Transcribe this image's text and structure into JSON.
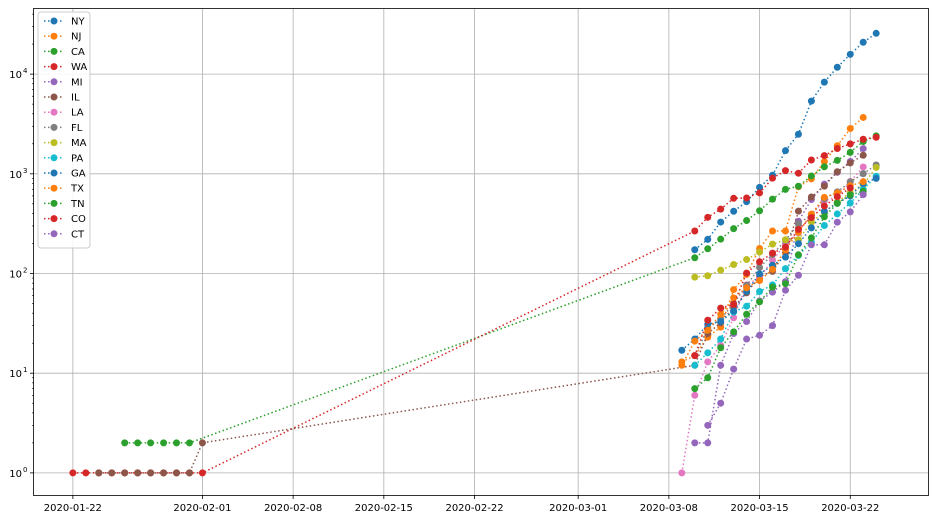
{
  "chart_data": {
    "type": "line",
    "style": "dotted lines with circle markers",
    "yscale": "log",
    "grid": true,
    "legend_position": "top-left",
    "xlim": [
      "2020-01-19",
      "2020-03-28"
    ],
    "ylim": [
      0.6,
      45000
    ],
    "x_ticks": [
      "2020-01-22",
      "2020-02-01",
      "2020-02-08",
      "2020-02-15",
      "2020-02-22",
      "2020-03-01",
      "2020-03-08",
      "2020-03-15",
      "2020-03-22"
    ],
    "y_ticks": [
      {
        "value": 1,
        "base": "10",
        "exp": "0"
      },
      {
        "value": 10,
        "base": "10",
        "exp": "1"
      },
      {
        "value": 100,
        "base": "10",
        "exp": "2"
      },
      {
        "value": 1000,
        "base": "10",
        "exp": "3"
      },
      {
        "value": 10000,
        "base": "10",
        "exp": "4"
      }
    ],
    "series": [
      {
        "name": "NY",
        "color": "#1f77b4",
        "points": [
          [
            "2020-03-10",
            173
          ],
          [
            "2020-03-11",
            220
          ],
          [
            "2020-03-12",
            328
          ],
          [
            "2020-03-13",
            421
          ],
          [
            "2020-03-14",
            525
          ],
          [
            "2020-03-15",
            732
          ],
          [
            "2020-03-16",
            967
          ],
          [
            "2020-03-17",
            1706
          ],
          [
            "2020-03-18",
            2495
          ],
          [
            "2020-03-19",
            5365
          ],
          [
            "2020-03-20",
            8310
          ],
          [
            "2020-03-21",
            11710
          ],
          [
            "2020-03-22",
            15793
          ],
          [
            "2020-03-23",
            20875
          ],
          [
            "2020-03-24",
            25665
          ]
        ]
      },
      {
        "name": "NJ",
        "color": "#ff7f0e",
        "points": [
          [
            "2020-03-09",
            13
          ],
          [
            "2020-03-10",
            15
          ],
          [
            "2020-03-11",
            23
          ],
          [
            "2020-03-12",
            29
          ],
          [
            "2020-03-13",
            69
          ],
          [
            "2020-03-14",
            98
          ],
          [
            "2020-03-15",
            178
          ],
          [
            "2020-03-16",
            267
          ],
          [
            "2020-03-17",
            267
          ],
          [
            "2020-03-18",
            742
          ],
          [
            "2020-03-19",
            890
          ],
          [
            "2020-03-20",
            1327
          ],
          [
            "2020-03-21",
            1914
          ],
          [
            "2020-03-22",
            2844
          ],
          [
            "2020-03-23",
            3675
          ]
        ]
      },
      {
        "name": "CA",
        "color": "#2ca02c",
        "points": [
          [
            "2020-01-26",
            2
          ],
          [
            "2020-01-27",
            2
          ],
          [
            "2020-01-28",
            2
          ],
          [
            "2020-01-29",
            2
          ],
          [
            "2020-01-30",
            2
          ],
          [
            "2020-01-31",
            2
          ],
          [
            "2020-03-10",
            144
          ],
          [
            "2020-03-11",
            177
          ],
          [
            "2020-03-12",
            221
          ],
          [
            "2020-03-13",
            282
          ],
          [
            "2020-03-14",
            340
          ],
          [
            "2020-03-15",
            426
          ],
          [
            "2020-03-16",
            557
          ],
          [
            "2020-03-17",
            698
          ],
          [
            "2020-03-18",
            751
          ],
          [
            "2020-03-19",
            952
          ],
          [
            "2020-03-20",
            1177
          ],
          [
            "2020-03-21",
            1364
          ],
          [
            "2020-03-22",
            1642
          ],
          [
            "2020-03-23",
            2108
          ],
          [
            "2020-03-24",
            2400
          ]
        ]
      },
      {
        "name": "WA",
        "color": "#d62728",
        "points": [
          [
            "2020-01-22",
            1
          ],
          [
            "2020-01-23",
            1
          ],
          [
            "2020-01-24",
            1
          ],
          [
            "2020-01-25",
            1
          ],
          [
            "2020-01-26",
            1
          ],
          [
            "2020-01-27",
            1
          ],
          [
            "2020-01-28",
            1
          ],
          [
            "2020-01-29",
            1
          ],
          [
            "2020-01-30",
            1
          ],
          [
            "2020-01-31",
            1
          ],
          [
            "2020-02-01",
            1
          ],
          [
            "2020-03-10",
            267
          ],
          [
            "2020-03-11",
            366
          ],
          [
            "2020-03-12",
            442
          ],
          [
            "2020-03-13",
            568
          ],
          [
            "2020-03-14",
            572
          ],
          [
            "2020-03-15",
            643
          ],
          [
            "2020-03-16",
            904
          ],
          [
            "2020-03-17",
            1076
          ],
          [
            "2020-03-18",
            1014
          ],
          [
            "2020-03-19",
            1376
          ],
          [
            "2020-03-20",
            1524
          ],
          [
            "2020-03-21",
            1793
          ],
          [
            "2020-03-22",
            1996
          ],
          [
            "2020-03-23",
            2221
          ],
          [
            "2020-03-24",
            2328
          ]
        ]
      },
      {
        "name": "MI",
        "color": "#9467bd",
        "points": [
          [
            "2020-03-10",
            2
          ],
          [
            "2020-03-11",
            2
          ],
          [
            "2020-03-12",
            12
          ],
          [
            "2020-03-13",
            25
          ],
          [
            "2020-03-14",
            33
          ],
          [
            "2020-03-15",
            53
          ],
          [
            "2020-03-16",
            65
          ],
          [
            "2020-03-17",
            83
          ],
          [
            "2020-03-18",
            334
          ],
          [
            "2020-03-19",
            552
          ],
          [
            "2020-03-20",
            787
          ],
          [
            "2020-03-21",
            1035
          ],
          [
            "2020-03-22",
            1328
          ],
          [
            "2020-03-23",
            1791
          ]
        ]
      },
      {
        "name": "IL",
        "color": "#8c564b",
        "points": [
          [
            "2020-01-24",
            1
          ],
          [
            "2020-01-25",
            1
          ],
          [
            "2020-01-26",
            1
          ],
          [
            "2020-01-27",
            1
          ],
          [
            "2020-01-28",
            1
          ],
          [
            "2020-01-29",
            1
          ],
          [
            "2020-01-30",
            1
          ],
          [
            "2020-01-31",
            1
          ],
          [
            "2020-02-01",
            2
          ],
          [
            "2020-03-10",
            12
          ],
          [
            "2020-03-11",
            25
          ],
          [
            "2020-03-12",
            32
          ],
          [
            "2020-03-13",
            46
          ],
          [
            "2020-03-14",
            64
          ],
          [
            "2020-03-15",
            93
          ],
          [
            "2020-03-16",
            105
          ],
          [
            "2020-03-17",
            161
          ],
          [
            "2020-03-18",
            422
          ],
          [
            "2020-03-19",
            585
          ],
          [
            "2020-03-20",
            753
          ],
          [
            "2020-03-21",
            1049
          ],
          [
            "2020-03-22",
            1285
          ],
          [
            "2020-03-23",
            1535
          ]
        ]
      },
      {
        "name": "LA",
        "color": "#e377c2",
        "points": [
          [
            "2020-03-09",
            1
          ],
          [
            "2020-03-10",
            6
          ],
          [
            "2020-03-11",
            13
          ],
          [
            "2020-03-12",
            19
          ],
          [
            "2020-03-13",
            36
          ],
          [
            "2020-03-14",
            77
          ],
          [
            "2020-03-15",
            91
          ],
          [
            "2020-03-16",
            136
          ],
          [
            "2020-03-17",
            196
          ],
          [
            "2020-03-18",
            257
          ],
          [
            "2020-03-19",
            392
          ],
          [
            "2020-03-20",
            538
          ],
          [
            "2020-03-21",
            585
          ],
          [
            "2020-03-22",
            837
          ],
          [
            "2020-03-23",
            1172
          ]
        ]
      },
      {
        "name": "FL",
        "color": "#7f7f7f",
        "points": [
          [
            "2020-03-10",
            15
          ],
          [
            "2020-03-11",
            28
          ],
          [
            "2020-03-12",
            35
          ],
          [
            "2020-03-13",
            50
          ],
          [
            "2020-03-14",
            76
          ],
          [
            "2020-03-15",
            115
          ],
          [
            "2020-03-16",
            155
          ],
          [
            "2020-03-17",
            216
          ],
          [
            "2020-03-18",
            314
          ],
          [
            "2020-03-19",
            390
          ],
          [
            "2020-03-20",
            563
          ],
          [
            "2020-03-21",
            659
          ],
          [
            "2020-03-22",
            830
          ],
          [
            "2020-03-23",
            1004
          ],
          [
            "2020-03-24",
            1227
          ]
        ]
      },
      {
        "name": "MA",
        "color": "#bcbd22",
        "points": [
          [
            "2020-03-10",
            92
          ],
          [
            "2020-03-11",
            95
          ],
          [
            "2020-03-12",
            108
          ],
          [
            "2020-03-13",
            123
          ],
          [
            "2020-03-14",
            138
          ],
          [
            "2020-03-15",
            164
          ],
          [
            "2020-03-16",
            197
          ],
          [
            "2020-03-17",
            218
          ],
          [
            "2020-03-18",
            218
          ],
          [
            "2020-03-19",
            328
          ],
          [
            "2020-03-20",
            413
          ],
          [
            "2020-03-21",
            525
          ],
          [
            "2020-03-22",
            646
          ],
          [
            "2020-03-23",
            777
          ],
          [
            "2020-03-24",
            1159
          ]
        ]
      },
      {
        "name": "PA",
        "color": "#17becf",
        "points": [
          [
            "2020-03-10",
            12
          ],
          [
            "2020-03-11",
            16
          ],
          [
            "2020-03-12",
            22
          ],
          [
            "2020-03-13",
            41
          ],
          [
            "2020-03-14",
            47
          ],
          [
            "2020-03-15",
            66
          ],
          [
            "2020-03-16",
            77
          ],
          [
            "2020-03-17",
            112
          ],
          [
            "2020-03-18",
            152
          ],
          [
            "2020-03-19",
            206
          ],
          [
            "2020-03-20",
            303
          ],
          [
            "2020-03-21",
            396
          ],
          [
            "2020-03-22",
            509
          ],
          [
            "2020-03-23",
            698
          ],
          [
            "2020-03-24",
            946
          ]
        ]
      },
      {
        "name": "GA",
        "color": "#1f77b4",
        "points": [
          [
            "2020-03-09",
            17
          ],
          [
            "2020-03-10",
            22
          ],
          [
            "2020-03-11",
            31
          ],
          [
            "2020-03-12",
            33
          ],
          [
            "2020-03-13",
            42
          ],
          [
            "2020-03-14",
            66
          ],
          [
            "2020-03-15",
            99
          ],
          [
            "2020-03-16",
            121
          ],
          [
            "2020-03-17",
            146
          ],
          [
            "2020-03-18",
            199
          ],
          [
            "2020-03-19",
            287
          ],
          [
            "2020-03-20",
            420
          ],
          [
            "2020-03-21",
            507
          ],
          [
            "2020-03-22",
            600
          ],
          [
            "2020-03-23",
            800
          ],
          [
            "2020-03-24",
            900
          ]
        ]
      },
      {
        "name": "TX",
        "color": "#ff7f0e",
        "points": [
          [
            "2020-03-09",
            12
          ],
          [
            "2020-03-10",
            21
          ],
          [
            "2020-03-11",
            27
          ],
          [
            "2020-03-12",
            39
          ],
          [
            "2020-03-13",
            57
          ],
          [
            "2020-03-14",
            72
          ],
          [
            "2020-03-15",
            85
          ],
          [
            "2020-03-16",
            110
          ],
          [
            "2020-03-17",
            173
          ],
          [
            "2020-03-18",
            260
          ],
          [
            "2020-03-19",
            394
          ],
          [
            "2020-03-20",
            581
          ],
          [
            "2020-03-21",
            643
          ],
          [
            "2020-03-22",
            758
          ],
          [
            "2020-03-23",
            834
          ]
        ]
      },
      {
        "name": "TN",
        "color": "#2ca02c",
        "points": [
          [
            "2020-03-10",
            7
          ],
          [
            "2020-03-11",
            9
          ],
          [
            "2020-03-12",
            18
          ],
          [
            "2020-03-13",
            26
          ],
          [
            "2020-03-14",
            39
          ],
          [
            "2020-03-15",
            52
          ],
          [
            "2020-03-16",
            73
          ],
          [
            "2020-03-17",
            79
          ],
          [
            "2020-03-18",
            154
          ],
          [
            "2020-03-19",
            228
          ],
          [
            "2020-03-20",
            371
          ],
          [
            "2020-03-21",
            505
          ],
          [
            "2020-03-22",
            615
          ],
          [
            "2020-03-23",
            667
          ]
        ]
      },
      {
        "name": "CO",
        "color": "#d62728",
        "points": [
          [
            "2020-03-10",
            15
          ],
          [
            "2020-03-11",
            34
          ],
          [
            "2020-03-12",
            45
          ],
          [
            "2020-03-13",
            49
          ],
          [
            "2020-03-14",
            101
          ],
          [
            "2020-03-15",
            131
          ],
          [
            "2020-03-16",
            160
          ],
          [
            "2020-03-17",
            184
          ],
          [
            "2020-03-18",
            277
          ],
          [
            "2020-03-19",
            364
          ],
          [
            "2020-03-20",
            475
          ],
          [
            "2020-03-21",
            591
          ],
          [
            "2020-03-22",
            720
          ]
        ]
      },
      {
        "name": "CT",
        "color": "#9467bd",
        "points": [
          [
            "2020-03-11",
            3
          ],
          [
            "2020-03-12",
            5
          ],
          [
            "2020-03-13",
            11
          ],
          [
            "2020-03-14",
            22
          ],
          [
            "2020-03-15",
            24
          ],
          [
            "2020-03-16",
            30
          ],
          [
            "2020-03-17",
            68
          ],
          [
            "2020-03-18",
            96
          ],
          [
            "2020-03-19",
            194
          ],
          [
            "2020-03-20",
            194
          ],
          [
            "2020-03-21",
            327
          ],
          [
            "2020-03-22",
            415
          ],
          [
            "2020-03-23",
            618
          ]
        ]
      }
    ]
  }
}
